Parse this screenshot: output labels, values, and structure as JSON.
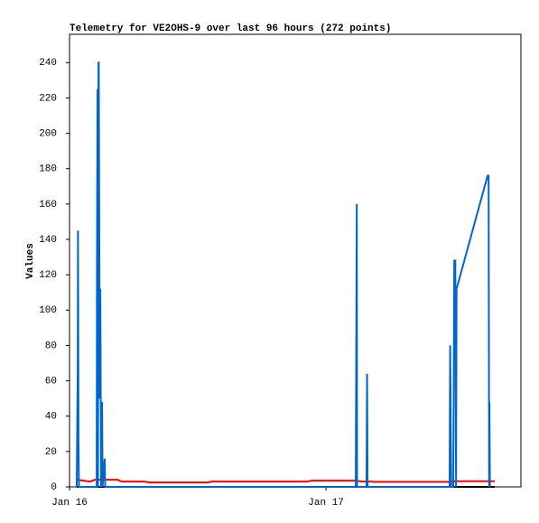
{
  "chart_data": {
    "type": "line",
    "title": "Telemetry for VE2OHS-9 over last 96 hours (272 points)",
    "y_label": "Values",
    "xlim": [
      0,
      1.76
    ],
    "xticks": [
      {
        "value": 0,
        "label": "Jan 16"
      },
      {
        "value": 1,
        "label": "Jan 17"
      }
    ],
    "ylim": [
      0,
      256
    ],
    "yticks": [
      0,
      20,
      40,
      60,
      80,
      100,
      120,
      140,
      160,
      180,
      200,
      220,
      240
    ],
    "series": [
      {
        "color": "#000000",
        "x": [
          0.028,
          1.658
        ],
        "values": [
          0,
          0
        ]
      },
      {
        "color": "#ff0000",
        "x": [
          0.028,
          0.081,
          0.099,
          0.187,
          0.204,
          0.292,
          0.31,
          0.539,
          0.556,
          0.926,
          0.944,
          1.12,
          1.137,
          1.173,
          1.19,
          1.489,
          1.507,
          1.658
        ],
        "values": [
          4,
          3,
          4,
          4,
          3,
          3,
          2.5,
          2.5,
          3,
          3,
          3.5,
          3.5,
          3,
          3,
          2.8,
          2.8,
          3.2,
          3.2
        ]
      },
      {
        "color": "#0066cc",
        "x": [
          0.028,
          0.032,
          0.033,
          0.035,
          0.037,
          0.106,
          0.107,
          0.109,
          0.111,
          0.113,
          0.114,
          0.116,
          0.118,
          0.12,
          0.121,
          0.123,
          0.127,
          0.129,
          0.137,
          0.139,
          1.116,
          1.118,
          1.12,
          1.121,
          1.158,
          1.16,
          1.162,
          1.482,
          1.484,
          1.486,
          1.488,
          1.496,
          1.498,
          1.5,
          1.504,
          1.507,
          1.509,
          1.63,
          1.634,
          1.636,
          1.637,
          1.639
        ],
        "values": [
          0,
          65,
          145,
          25,
          0,
          0,
          120,
          225,
          0,
          240,
          240,
          145,
          50,
          112,
          80,
          0,
          48,
          0,
          16,
          0,
          0,
          80,
          160,
          0,
          0,
          64,
          0,
          0,
          80,
          40,
          0,
          0,
          56,
          128,
          128,
          0,
          112,
          176,
          176,
          0,
          48,
          0
        ]
      }
    ]
  }
}
